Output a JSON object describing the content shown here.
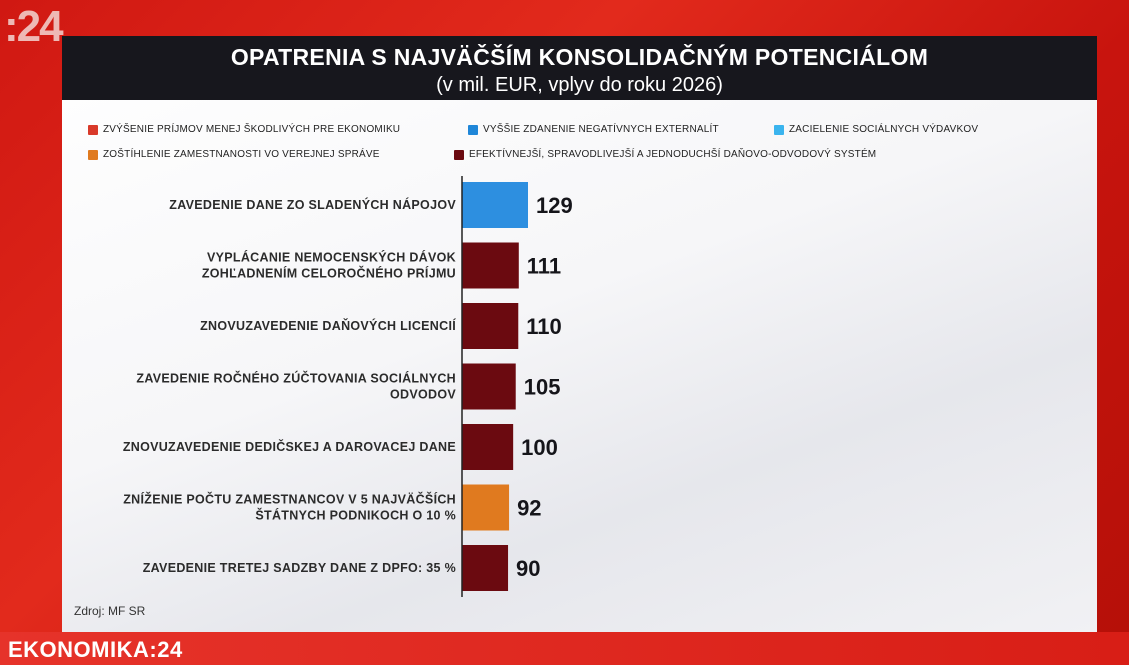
{
  "channel": {
    "logo": ":24"
  },
  "footer": {
    "program": "EKONOMIKA:24"
  },
  "chart_data": {
    "type": "bar",
    "orientation": "horizontal",
    "title": "OPATRENIA S NAJVÄČŠÍM KONSOLIDAČNÝM POTENCIÁLOM",
    "subtitle": "(v mil. EUR, vplyv do roku 2026)",
    "source": "Zdroj: MF SR",
    "legend": [
      {
        "label": "ZVÝŠENIE PRÍJMOV MENEJ ŠKODLIVÝCH PRE EKONOMIKU",
        "color": "#d93a2a"
      },
      {
        "label": "VYŠŠIE ZDANENIE NEGATÍVNYCH EXTERNALÍT",
        "color": "#1f86d8"
      },
      {
        "label": "ZACIELENIE SOCIÁLNYCH VÝDAVKOV",
        "color": "#3ab4ee"
      },
      {
        "label": "ZOŠTÍHLENIE ZAMESTNANOSTI VO VEREJNEJ SPRÁVE",
        "color": "#e07a1f"
      },
      {
        "label": "EFEKTÍVNEJŠÍ, SPRAVODLIVEJŠÍ A JEDNODUCHŠÍ DAŇOVO-ODVODOVÝ SYSTÉM",
        "color": "#6b0a10"
      }
    ],
    "categories": [
      [
        "ZAVEDENIE DANE ZO SLADENÝCH NÁPOJOV"
      ],
      [
        "VYPLÁCANIE NEMOCENSKÝCH DÁVOK",
        "ZOHĽADNENÍM CELOROČNÉHO PRÍJMU"
      ],
      [
        "ZNOVUZAVEDENIE DAŇOVÝCH LICENCIÍ"
      ],
      [
        "ZAVEDENIE ROČNÉHO ZÚČTOVANIA SOCIÁLNYCH",
        "ODVODOV"
      ],
      [
        "ZNOVUZAVEDENIE DEDIČSKEJ A DAROVACEJ DANE"
      ],
      [
        "ZNÍŽENIE POČTU ZAMESTNANCOV V 5 NAJVÄČŠÍCH",
        "ŠTÁTNYCH PODNIKOCH O 10 %"
      ],
      [
        "ZAVEDENIE TRETEJ SADZBY DANE Z DPFO: 35 %"
      ]
    ],
    "values": [
      129,
      111,
      110,
      105,
      100,
      92,
      90
    ],
    "value_labels": [
      "129",
      "111",
      "110",
      "105",
      "100",
      "92",
      "90"
    ],
    "bar_colors": [
      "#2d8fe0",
      "#6b0a10",
      "#6b0a10",
      "#6b0a10",
      "#6b0a10",
      "#e07a1f",
      "#6b0a10"
    ],
    "xlim": [
      0,
      129
    ]
  }
}
